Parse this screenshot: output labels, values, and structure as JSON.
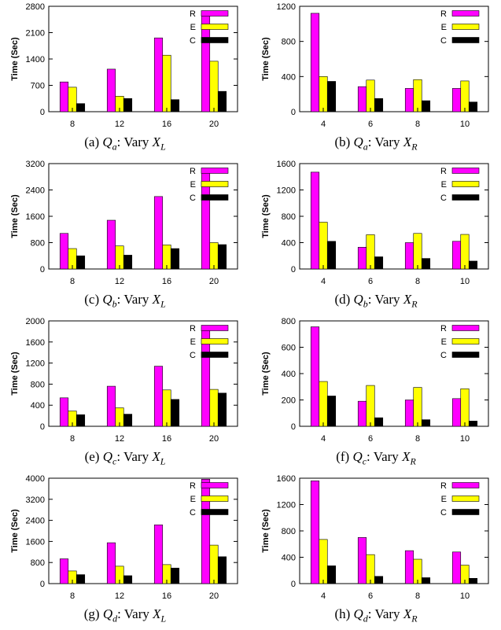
{
  "series_colors": [
    "#ff00ff",
    "#ffff00",
    "#000000"
  ],
  "chart_data": [
    {
      "type": "bar",
      "id": "a",
      "caption": {
        "label": "(a)",
        "q": "Q",
        "q_sub": "a",
        "text": ": Vary ",
        "x": "X",
        "x_sub": "L"
      },
      "ylabel": "Time (Sec)",
      "ylim": [
        0,
        2800
      ],
      "yticks": [
        0,
        700,
        1400,
        2100,
        2800
      ],
      "categories": [
        "8",
        "12",
        "16",
        "20"
      ],
      "series": [
        {
          "name": "R",
          "values": [
            790,
            1130,
            1960,
            2600
          ]
        },
        {
          "name": "E",
          "values": [
            650,
            410,
            1500,
            1340
          ]
        },
        {
          "name": "C",
          "values": [
            215,
            350,
            320,
            540
          ]
        }
      ]
    },
    {
      "type": "bar",
      "id": "b",
      "caption": {
        "label": "(b)",
        "q": "Q",
        "q_sub": "a",
        "text": ": Vary ",
        "x": "X",
        "x_sub": "R"
      },
      "ylabel": "Time (Sec)",
      "ylim": [
        0,
        1200
      ],
      "yticks": [
        0,
        400,
        800,
        1200
      ],
      "categories": [
        "4",
        "6",
        "8",
        "10"
      ],
      "series": [
        {
          "name": "R",
          "values": [
            1120,
            285,
            265,
            265
          ]
        },
        {
          "name": "E",
          "values": [
            400,
            360,
            365,
            350
          ]
        },
        {
          "name": "C",
          "values": [
            345,
            150,
            125,
            110
          ]
        }
      ]
    },
    {
      "type": "bar",
      "id": "c",
      "caption": {
        "label": "(c)",
        "q": "Q",
        "q_sub": "b",
        "text": ": Vary ",
        "x": "X",
        "x_sub": "L"
      },
      "ylabel": "Time (Sec)",
      "ylim": [
        0,
        3200
      ],
      "yticks": [
        0,
        800,
        1600,
        2400,
        3200
      ],
      "categories": [
        "8",
        "12",
        "16",
        "20"
      ],
      "series": [
        {
          "name": "R",
          "values": [
            1080,
            1480,
            2200,
            3040
          ]
        },
        {
          "name": "E",
          "values": [
            620,
            700,
            730,
            800
          ]
        },
        {
          "name": "C",
          "values": [
            400,
            420,
            620,
            740
          ]
        }
      ]
    },
    {
      "type": "bar",
      "id": "d",
      "caption": {
        "label": "(d)",
        "q": "Q",
        "q_sub": "b",
        "text": ": Vary ",
        "x": "X",
        "x_sub": "R"
      },
      "ylabel": "Time (Sec)",
      "ylim": [
        0,
        1600
      ],
      "yticks": [
        0,
        400,
        800,
        1200,
        1600
      ],
      "categories": [
        "4",
        "6",
        "8",
        "10"
      ],
      "series": [
        {
          "name": "R",
          "values": [
            1470,
            330,
            400,
            420
          ]
        },
        {
          "name": "E",
          "values": [
            710,
            520,
            540,
            525
          ]
        },
        {
          "name": "C",
          "values": [
            420,
            185,
            160,
            120
          ]
        }
      ]
    },
    {
      "type": "bar",
      "id": "e",
      "caption": {
        "label": "(e)",
        "q": "Q",
        "q_sub": "c",
        "text": ": Vary ",
        "x": "X",
        "x_sub": "L"
      },
      "ylabel": "Time (Sec)",
      "ylim": [
        0,
        2000
      ],
      "yticks": [
        0,
        400,
        800,
        1200,
        1600,
        2000
      ],
      "categories": [
        "8",
        "12",
        "16",
        "20"
      ],
      "series": [
        {
          "name": "R",
          "values": [
            540,
            760,
            1140,
            1880
          ]
        },
        {
          "name": "E",
          "values": [
            290,
            350,
            690,
            700
          ]
        },
        {
          "name": "C",
          "values": [
            220,
            230,
            510,
            630
          ]
        }
      ]
    },
    {
      "type": "bar",
      "id": "f",
      "caption": {
        "label": "(f)",
        "q": "Q",
        "q_sub": "c",
        "text": ": Vary ",
        "x": "X",
        "x_sub": "R"
      },
      "ylabel": "Time (Sec)",
      "ylim": [
        0,
        800
      ],
      "yticks": [
        0,
        200,
        400,
        600,
        800
      ],
      "categories": [
        "4",
        "6",
        "8",
        "10"
      ],
      "series": [
        {
          "name": "R",
          "values": [
            755,
            190,
            200,
            210
          ]
        },
        {
          "name": "E",
          "values": [
            340,
            310,
            295,
            285
          ]
        },
        {
          "name": "C",
          "values": [
            230,
            65,
            50,
            40
          ]
        }
      ]
    },
    {
      "type": "bar",
      "id": "g",
      "caption": {
        "label": "(g)",
        "q": "Q",
        "q_sub": "d",
        "text": ": Vary ",
        "x": "X",
        "x_sub": "L"
      },
      "ylabel": "Time (Sec)",
      "ylim": [
        0,
        4000
      ],
      "yticks": [
        0,
        800,
        1600,
        2400,
        3200,
        4000
      ],
      "categories": [
        "8",
        "12",
        "16",
        "20"
      ],
      "series": [
        {
          "name": "R",
          "values": [
            940,
            1550,
            2230,
            3960
          ]
        },
        {
          "name": "E",
          "values": [
            480,
            660,
            720,
            1460
          ]
        },
        {
          "name": "C",
          "values": [
            340,
            300,
            590,
            1020
          ]
        }
      ]
    },
    {
      "type": "bar",
      "id": "h",
      "caption": {
        "label": "(h)",
        "q": "Q",
        "q_sub": "d",
        "text": ": Vary ",
        "x": "X",
        "x_sub": "R"
      },
      "ylabel": "Time (Sec)",
      "ylim": [
        0,
        1600
      ],
      "yticks": [
        0,
        400,
        800,
        1200,
        1600
      ],
      "categories": [
        "4",
        "6",
        "8",
        "10"
      ],
      "series": [
        {
          "name": "R",
          "values": [
            1560,
            700,
            500,
            480
          ]
        },
        {
          "name": "E",
          "values": [
            670,
            440,
            370,
            280
          ]
        },
        {
          "name": "C",
          "values": [
            270,
            110,
            90,
            80
          ]
        }
      ]
    }
  ]
}
